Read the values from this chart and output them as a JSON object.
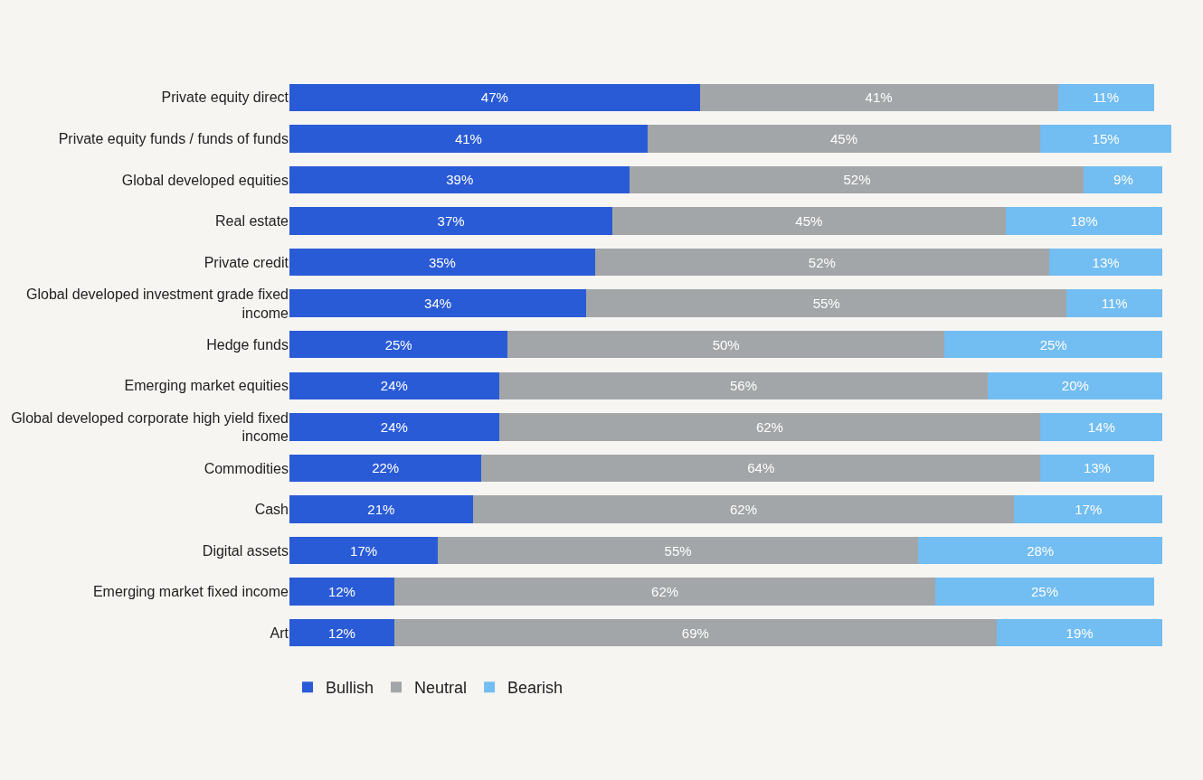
{
  "chart_data": {
    "type": "bar",
    "orientation": "horizontal",
    "stacked": true,
    "tick_labels": "y",
    "grid": false,
    "legend": "bottom left",
    "categories": [
      "Private equity direct",
      "Private equity funds / funds of funds",
      "Global developed equities",
      "Real estate",
      "Private credit",
      "Global developed investment grade fixed income",
      "Hedge funds",
      "Emerging market equities",
      "Global developed corporate high yield fixed income",
      "Commodities",
      "Cash",
      "Digital assets",
      "Emerging market fixed income",
      "Art"
    ],
    "series": [
      {
        "name": "Bullish",
        "color": "#2a5bd7",
        "values": [
          47,
          41,
          39,
          37,
          35,
          34,
          25,
          24,
          24,
          22,
          21,
          17,
          12,
          12
        ],
        "value_labels": [
          "47%",
          "41%",
          "39%",
          "37%",
          "35%",
          "34%",
          "25%",
          "24%",
          "24%",
          "22%",
          "21%",
          "17%",
          "12%",
          "12%"
        ]
      },
      {
        "name": "Neutral",
        "color": "#a3a6a8",
        "values": [
          41,
          45,
          52,
          45,
          52,
          55,
          50,
          56,
          62,
          64,
          62,
          55,
          62,
          69
        ],
        "value_labels": [
          "41%",
          "45%",
          "52%",
          "45%",
          "52%",
          "55%",
          "50%",
          "56%",
          "62%",
          "64%",
          "62%",
          "55%",
          "62%",
          "69%"
        ]
      },
      {
        "name": "Bearish",
        "color": "#72bdf2",
        "values": [
          11,
          15,
          9,
          18,
          13,
          11,
          25,
          20,
          14,
          13,
          17,
          28,
          25,
          19
        ],
        "value_labels": [
          "11%",
          "15%",
          "9%",
          "18%",
          "13%",
          "11%",
          "25%",
          "20%",
          "14%",
          "13%",
          "17%",
          "28%",
          "25%",
          "19%"
        ]
      }
    ]
  }
}
